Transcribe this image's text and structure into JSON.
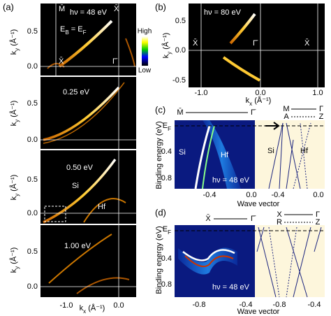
{
  "panel_a": {
    "label": "(a)",
    "x_ticks": [
      "-1.0",
      "0.0"
    ],
    "x_axis_label": [
      "k",
      "x",
      " (Å⁻¹)"
    ],
    "subpanels": [
      {
        "y_axis_label": [
          "k",
          "y",
          " (Å⁻¹)"
        ],
        "y_ticks": [
          "0.5",
          "0.0"
        ],
        "photon_energy": "hν = 48 eV",
        "energy": [
          "E",
          "B",
          " = E",
          "F"
        ],
        "points": [
          "M̄",
          "X̄",
          "X̄",
          "Γ̄"
        ],
        "colorbar": {
          "high": "High",
          "low": "Low"
        }
      },
      {
        "y_axis_label": [
          "k",
          "y",
          " (Å⁻¹)"
        ],
        "y_ticks": [
          "0.5",
          "0.0"
        ],
        "energy": "0.25 eV"
      },
      {
        "y_axis_label": [
          "k",
          "y",
          " (Å⁻¹)"
        ],
        "y_ticks": [
          "0.5",
          "0.0"
        ],
        "energy": "0.50 eV",
        "labels": [
          "Si",
          "Hf"
        ]
      },
      {
        "y_axis_label": [
          "k",
          "y",
          " (Å⁻¹)"
        ],
        "y_ticks": [
          "0.5",
          "0.0"
        ],
        "energy": "1.00 eV"
      }
    ]
  },
  "panel_b": {
    "label": "(b)",
    "photon_energy": "hν = 80 eV",
    "points": [
      "X̄",
      "Γ̄",
      "X̄"
    ],
    "x_ticks": [
      "-1.0",
      "0.0",
      "1.0"
    ],
    "y_ticks": [
      "0.5",
      "0.0",
      "-0.5"
    ],
    "x_axis_label": [
      "k",
      "x",
      " (Å⁻¹)"
    ],
    "y_axis_label": [
      "k",
      "y",
      " (Å⁻¹)"
    ]
  },
  "panel_c": {
    "label": "(c)",
    "path_left": [
      "M̄",
      "Γ̄"
    ],
    "path_right": [
      "M",
      "Γ",
      "A",
      "Z"
    ],
    "fermi": [
      "E",
      "F"
    ],
    "y_ticks": [
      "0.4",
      "0.8"
    ],
    "y_axis_label": "Binding energy (eV)",
    "x_ticks": [
      "-0.4",
      "0.0",
      "-0.4",
      "0.0"
    ],
    "x_axis_label": "Wave vector",
    "labels": [
      "Si",
      "Hf",
      "Si",
      "Hf"
    ],
    "photon_energy": "hν = 48 eV"
  },
  "panel_d": {
    "label": "(d)",
    "path_left": [
      "X̄",
      "Γ̄"
    ],
    "path_right": [
      "X",
      "Γ",
      "R",
      "Z"
    ],
    "fermi": [
      "E",
      "F"
    ],
    "y_ticks": [
      "0.4",
      "0.8"
    ],
    "y_axis_label": "Binding energy (eV)",
    "x_ticks": [
      "-0.8",
      "-0.4",
      "-0.8",
      "-0.4"
    ],
    "x_axis_label": "Wave vector",
    "photon_energy": "hν = 48 eV"
  }
}
